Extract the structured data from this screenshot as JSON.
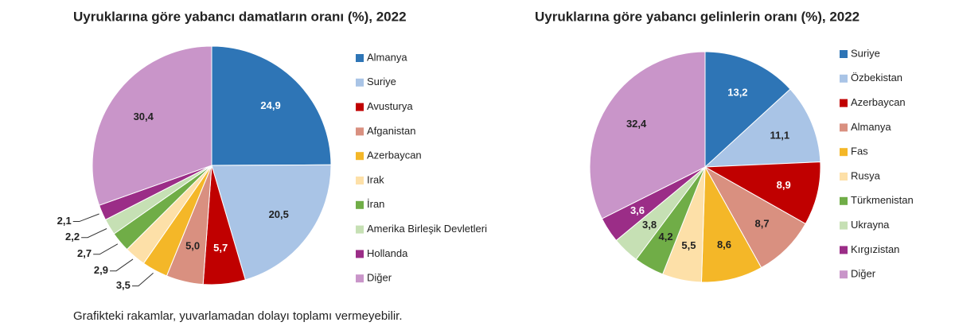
{
  "chart_data": [
    {
      "type": "pie",
      "title": "Uyruklarına göre yabancı damatların oranı (%), 2022",
      "categories": [
        "Almanya",
        "Suriye",
        "Avusturya",
        "Afganistan",
        "Azerbaycan",
        "Irak",
        "İran",
        "Amerika Birleşik Devletleri",
        "Hollanda",
        "Diğer"
      ],
      "values": [
        24.9,
        20.5,
        5.7,
        5.0,
        3.5,
        2.9,
        2.7,
        2.2,
        2.1,
        30.4
      ],
      "value_labels": [
        "24,9",
        "20,5",
        "5,7",
        "5,0",
        "3,5",
        "2,9",
        "2,7",
        "2,2",
        "2,1",
        "30,4"
      ],
      "colors": [
        "#2e75b6",
        "#a9c4e6",
        "#c00000",
        "#d99080",
        "#f4b728",
        "#fde0a8",
        "#70ad47",
        "#c6e0b4",
        "#9b2d87",
        "#c995c9"
      ]
    },
    {
      "type": "pie",
      "title": "Uyruklarına göre yabancı gelinlerin oranı (%), 2022",
      "categories": [
        "Suriye",
        "Özbekistan",
        "Azerbaycan",
        "Almanya",
        "Fas",
        "Rusya",
        "Türkmenistan",
        "Ukrayna",
        "Kırgızistan",
        "Diğer"
      ],
      "values": [
        13.2,
        11.1,
        8.9,
        8.7,
        8.6,
        5.5,
        4.2,
        3.8,
        3.6,
        32.4
      ],
      "value_labels": [
        "13,2",
        "11,1",
        "8,9",
        "8,7",
        "8,6",
        "5,5",
        "4,2",
        "3,8",
        "3,6",
        "32,4"
      ],
      "colors": [
        "#2e75b6",
        "#a9c4e6",
        "#c00000",
        "#d99080",
        "#f4b728",
        "#fde0a8",
        "#70ad47",
        "#c6e0b4",
        "#9b2d87",
        "#c995c9"
      ]
    }
  ],
  "footnote": "Grafikteki rakamlar, yuvarlamadan dolayı toplamı vermeyebilir."
}
